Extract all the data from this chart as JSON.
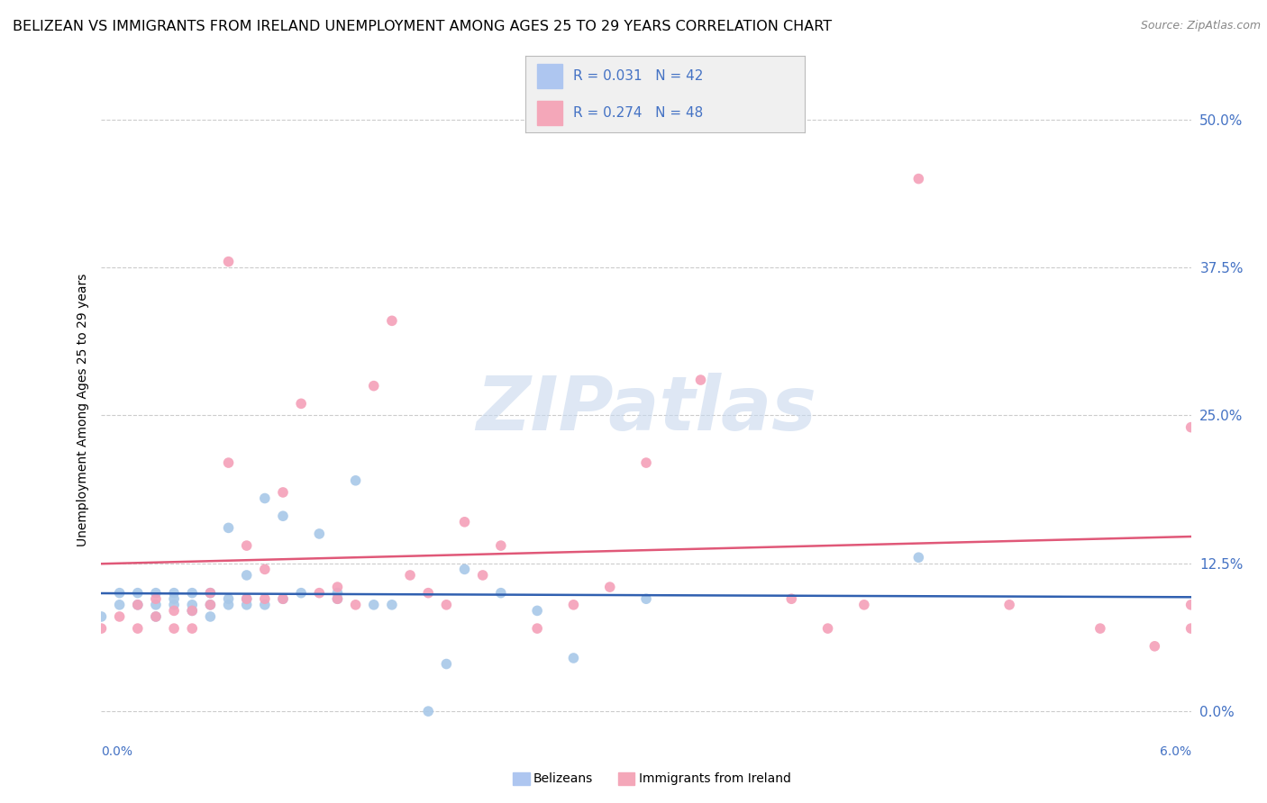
{
  "title": "BELIZEAN VS IMMIGRANTS FROM IRELAND UNEMPLOYMENT AMONG AGES 25 TO 29 YEARS CORRELATION CHART",
  "source": "Source: ZipAtlas.com",
  "ylabel": "Unemployment Among Ages 25 to 29 years",
  "ytick_values": [
    0.0,
    0.125,
    0.25,
    0.375,
    0.5
  ],
  "ytick_labels": [
    "0.0%",
    "12.5%",
    "25.0%",
    "37.5%",
    "50.0%"
  ],
  "xlim": [
    0.0,
    0.06
  ],
  "ylim": [
    -0.03,
    0.54
  ],
  "watermark": "ZIPatlas",
  "belizean_x": [
    0.0,
    0.001,
    0.001,
    0.002,
    0.002,
    0.003,
    0.003,
    0.003,
    0.004,
    0.004,
    0.004,
    0.005,
    0.005,
    0.005,
    0.006,
    0.006,
    0.006,
    0.007,
    0.007,
    0.007,
    0.008,
    0.008,
    0.008,
    0.009,
    0.009,
    0.01,
    0.01,
    0.011,
    0.012,
    0.013,
    0.013,
    0.014,
    0.015,
    0.016,
    0.018,
    0.019,
    0.02,
    0.022,
    0.024,
    0.026,
    0.03,
    0.045
  ],
  "belizean_y": [
    0.08,
    0.09,
    0.1,
    0.09,
    0.1,
    0.08,
    0.09,
    0.1,
    0.09,
    0.095,
    0.1,
    0.085,
    0.09,
    0.1,
    0.08,
    0.09,
    0.1,
    0.09,
    0.095,
    0.155,
    0.09,
    0.095,
    0.115,
    0.09,
    0.18,
    0.095,
    0.165,
    0.1,
    0.15,
    0.1,
    0.095,
    0.195,
    0.09,
    0.09,
    0.0,
    0.04,
    0.12,
    0.1,
    0.085,
    0.045,
    0.095,
    0.13
  ],
  "ireland_x": [
    0.0,
    0.001,
    0.002,
    0.002,
    0.003,
    0.003,
    0.004,
    0.004,
    0.005,
    0.005,
    0.006,
    0.006,
    0.007,
    0.007,
    0.008,
    0.008,
    0.009,
    0.009,
    0.01,
    0.01,
    0.011,
    0.012,
    0.013,
    0.013,
    0.014,
    0.015,
    0.016,
    0.017,
    0.018,
    0.019,
    0.02,
    0.021,
    0.022,
    0.024,
    0.026,
    0.028,
    0.03,
    0.033,
    0.038,
    0.04,
    0.042,
    0.045,
    0.05,
    0.055,
    0.058,
    0.06,
    0.06,
    0.06
  ],
  "ireland_y": [
    0.07,
    0.08,
    0.07,
    0.09,
    0.08,
    0.095,
    0.07,
    0.085,
    0.07,
    0.085,
    0.09,
    0.1,
    0.38,
    0.21,
    0.095,
    0.14,
    0.095,
    0.12,
    0.095,
    0.185,
    0.26,
    0.1,
    0.095,
    0.105,
    0.09,
    0.275,
    0.33,
    0.115,
    0.1,
    0.09,
    0.16,
    0.115,
    0.14,
    0.07,
    0.09,
    0.105,
    0.21,
    0.28,
    0.095,
    0.07,
    0.09,
    0.45,
    0.09,
    0.07,
    0.055,
    0.09,
    0.24,
    0.07
  ],
  "belizean_color": "#a8c8e8",
  "ireland_color": "#f4a0b8",
  "belizean_line_color": "#3060b0",
  "ireland_line_color": "#e05878",
  "grid_color": "#cccccc",
  "background_color": "#ffffff",
  "title_fontsize": 11.5,
  "source_fontsize": 9,
  "marker_size": 70,
  "legend_label_blue": "R = 0.031   N = 42",
  "legend_label_pink": "R = 0.274   N = 48",
  "legend_blue_color": "#aec6f0",
  "legend_pink_color": "#f4a7b9"
}
